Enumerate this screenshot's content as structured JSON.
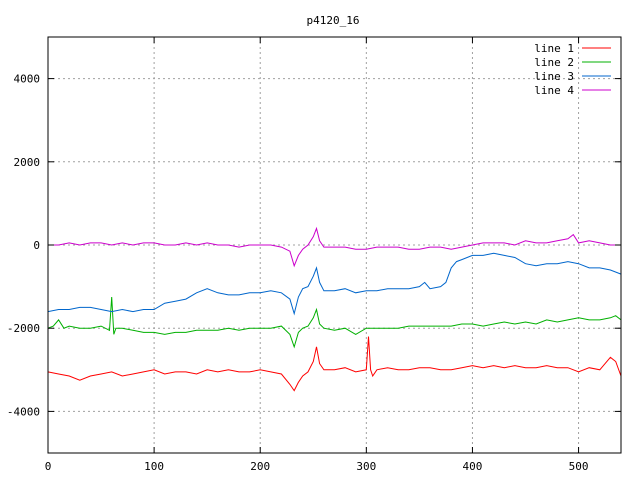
{
  "chart_data": {
    "type": "line",
    "title": "p4120_16",
    "xlabel": "",
    "ylabel": "",
    "xlim": [
      0,
      540
    ],
    "ylim": [
      -5000,
      5000
    ],
    "x_ticks": [
      0,
      100,
      200,
      300,
      400,
      500
    ],
    "y_ticks": [
      -4000,
      -2000,
      0,
      2000,
      4000
    ],
    "grid": true,
    "legend_position": "top-right",
    "series": [
      {
        "name": "line 1",
        "color": "#ff0000",
        "x": [
          0,
          10,
          20,
          30,
          40,
          50,
          60,
          70,
          80,
          90,
          100,
          110,
          120,
          130,
          140,
          150,
          160,
          170,
          180,
          190,
          200,
          210,
          220,
          228,
          232,
          236,
          240,
          245,
          250,
          253,
          256,
          260,
          270,
          280,
          290,
          300,
          302,
          304,
          306,
          310,
          320,
          330,
          340,
          350,
          360,
          370,
          380,
          390,
          400,
          410,
          420,
          430,
          440,
          450,
          460,
          470,
          480,
          490,
          500,
          510,
          520,
          530,
          535,
          540
        ],
        "y": [
          -3050,
          -3100,
          -3150,
          -3250,
          -3150,
          -3100,
          -3050,
          -3150,
          -3100,
          -3050,
          -3000,
          -3100,
          -3050,
          -3050,
          -3100,
          -3000,
          -3050,
          -3000,
          -3050,
          -3050,
          -3000,
          -3050,
          -3100,
          -3350,
          -3500,
          -3300,
          -3150,
          -3050,
          -2800,
          -2450,
          -2850,
          -3000,
          -3000,
          -2950,
          -3050,
          -3000,
          -2200,
          -3000,
          -3150,
          -3000,
          -2950,
          -3000,
          -3000,
          -2950,
          -2950,
          -3000,
          -3000,
          -2950,
          -2900,
          -2950,
          -2900,
          -2950,
          -2900,
          -2950,
          -2950,
          -2900,
          -2950,
          -2950,
          -3050,
          -2950,
          -3000,
          -2700,
          -2800,
          -3150
        ]
      },
      {
        "name": "line 2",
        "color": "#00b000",
        "x": [
          0,
          5,
          10,
          15,
          20,
          30,
          40,
          50,
          58,
          60,
          62,
          64,
          70,
          80,
          90,
          100,
          110,
          120,
          130,
          140,
          150,
          160,
          170,
          180,
          190,
          200,
          210,
          220,
          228,
          232,
          236,
          240,
          245,
          250,
          253,
          256,
          260,
          270,
          280,
          290,
          300,
          310,
          320,
          330,
          340,
          350,
          360,
          370,
          380,
          390,
          400,
          410,
          420,
          430,
          440,
          450,
          460,
          470,
          480,
          490,
          500,
          510,
          520,
          530,
          535,
          540
        ],
        "y": [
          -2000,
          -1950,
          -1800,
          -2000,
          -1950,
          -2000,
          -2000,
          -1950,
          -2050,
          -1250,
          -2150,
          -2000,
          -2000,
          -2050,
          -2100,
          -2100,
          -2150,
          -2100,
          -2100,
          -2050,
          -2050,
          -2050,
          -2000,
          -2050,
          -2000,
          -2000,
          -2000,
          -1950,
          -2150,
          -2450,
          -2100,
          -2000,
          -1950,
          -1750,
          -1550,
          -1900,
          -2000,
          -2050,
          -2000,
          -2150,
          -2000,
          -2000,
          -2000,
          -2000,
          -1950,
          -1950,
          -1950,
          -1950,
          -1950,
          -1900,
          -1900,
          -1950,
          -1900,
          -1850,
          -1900,
          -1850,
          -1900,
          -1800,
          -1850,
          -1800,
          -1750,
          -1800,
          -1800,
          -1750,
          -1700,
          -1800
        ]
      },
      {
        "name": "line 3",
        "color": "#0066cc",
        "x": [
          0,
          10,
          20,
          30,
          40,
          50,
          60,
          70,
          80,
          90,
          100,
          110,
          120,
          130,
          140,
          150,
          160,
          170,
          180,
          190,
          200,
          210,
          220,
          228,
          232,
          236,
          240,
          245,
          250,
          253,
          256,
          260,
          270,
          280,
          290,
          300,
          310,
          320,
          330,
          340,
          350,
          355,
          360,
          370,
          375,
          380,
          385,
          390,
          400,
          410,
          420,
          430,
          440,
          450,
          460,
          470,
          480,
          490,
          500,
          510,
          520,
          530,
          540
        ],
        "y": [
          -1600,
          -1550,
          -1550,
          -1500,
          -1500,
          -1550,
          -1600,
          -1550,
          -1600,
          -1550,
          -1550,
          -1400,
          -1350,
          -1300,
          -1150,
          -1050,
          -1150,
          -1200,
          -1200,
          -1150,
          -1150,
          -1100,
          -1150,
          -1300,
          -1650,
          -1250,
          -1050,
          -1000,
          -750,
          -550,
          -900,
          -1100,
          -1100,
          -1050,
          -1150,
          -1100,
          -1100,
          -1050,
          -1050,
          -1050,
          -1000,
          -900,
          -1050,
          -1000,
          -900,
          -550,
          -400,
          -350,
          -250,
          -250,
          -200,
          -250,
          -300,
          -450,
          -500,
          -450,
          -450,
          -400,
          -450,
          -550,
          -550,
          -600,
          -700
        ]
      },
      {
        "name": "line 4",
        "color": "#cc00cc",
        "x": [
          0,
          10,
          20,
          30,
          40,
          50,
          60,
          70,
          80,
          90,
          100,
          110,
          120,
          130,
          140,
          150,
          160,
          170,
          180,
          190,
          200,
          210,
          220,
          228,
          232,
          236,
          240,
          245,
          250,
          253,
          256,
          260,
          270,
          280,
          290,
          300,
          310,
          320,
          330,
          340,
          350,
          360,
          370,
          380,
          390,
          400,
          410,
          420,
          430,
          440,
          450,
          460,
          470,
          480,
          490,
          495,
          500,
          510,
          520,
          530,
          540
        ],
        "y": [
          0,
          0,
          50,
          0,
          50,
          50,
          0,
          50,
          0,
          50,
          50,
          0,
          0,
          50,
          0,
          50,
          0,
          0,
          -50,
          0,
          0,
          0,
          -50,
          -150,
          -500,
          -250,
          -100,
          0,
          200,
          400,
          100,
          -50,
          -50,
          -50,
          -100,
          -100,
          -50,
          -50,
          -50,
          -100,
          -100,
          -50,
          -50,
          -100,
          -50,
          0,
          50,
          50,
          50,
          0,
          100,
          50,
          50,
          100,
          150,
          250,
          50,
          100,
          50,
          0,
          0
        ]
      }
    ]
  }
}
